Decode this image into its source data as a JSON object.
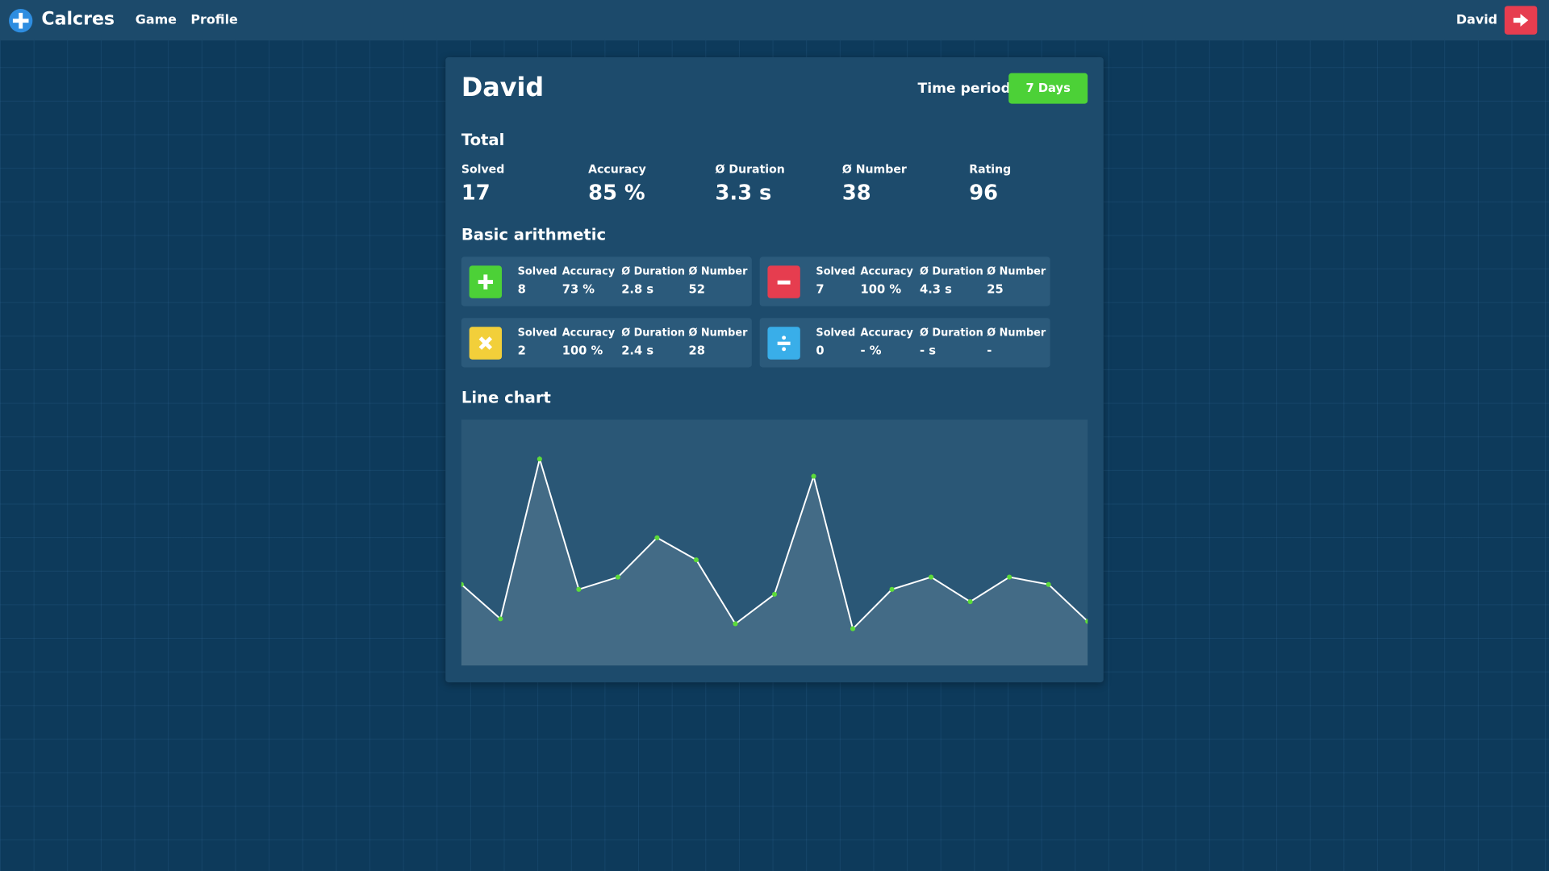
{
  "nav": {
    "brand": "Calcres",
    "links": [
      "Game",
      "Profile"
    ],
    "user": "David"
  },
  "profile": {
    "name": "David",
    "time_period_label": "Time period",
    "time_period": "7 Days"
  },
  "total": {
    "title": "Total",
    "stats": [
      {
        "label": "Solved",
        "value": "17"
      },
      {
        "label": "Accuracy",
        "value": "85 %"
      },
      {
        "label": "Ø Duration",
        "value": "3.3 s"
      },
      {
        "label": "Ø Number",
        "value": "38"
      },
      {
        "label": "Rating",
        "value": "96"
      }
    ]
  },
  "basic_arithmetic": {
    "title": "Basic arithmetic",
    "operations": [
      {
        "stats": [
          {
            "label": "Solved",
            "value": "8"
          },
          {
            "label": "Accuracy",
            "value": "73 %"
          },
          {
            "label": "Ø Duration",
            "value": "2.8 s"
          },
          {
            "label": "Ø Number",
            "value": "52"
          }
        ]
      },
      {
        "stats": [
          {
            "label": "Solved",
            "value": "7"
          },
          {
            "label": "Accuracy",
            "value": "100 %"
          },
          {
            "label": "Ø Duration",
            "value": "4.3 s"
          },
          {
            "label": "Ø Number",
            "value": "25"
          }
        ]
      },
      {
        "stats": [
          {
            "label": "Solved",
            "value": "2"
          },
          {
            "label": "Accuracy",
            "value": "100 %"
          },
          {
            "label": "Ø Duration",
            "value": "2.4 s"
          },
          {
            "label": "Ø Number",
            "value": "28"
          }
        ]
      },
      {
        "stats": [
          {
            "label": "Solved",
            "value": "0"
          },
          {
            "label": "Accuracy",
            "value": "- %"
          },
          {
            "label": "Ø Duration",
            "value": "- s"
          },
          {
            "label": "Ø Number",
            "value": "-"
          }
        ]
      }
    ]
  },
  "chart_data": {
    "type": "line",
    "title": "Line chart",
    "values": [
      33,
      19,
      84,
      31,
      36,
      52,
      43,
      17,
      29,
      77,
      15,
      31,
      36,
      26,
      36,
      33,
      18
    ],
    "ylim": [
      0,
      100
    ],
    "color": "#ffffff",
    "marker_color": "#5ddb3a"
  }
}
